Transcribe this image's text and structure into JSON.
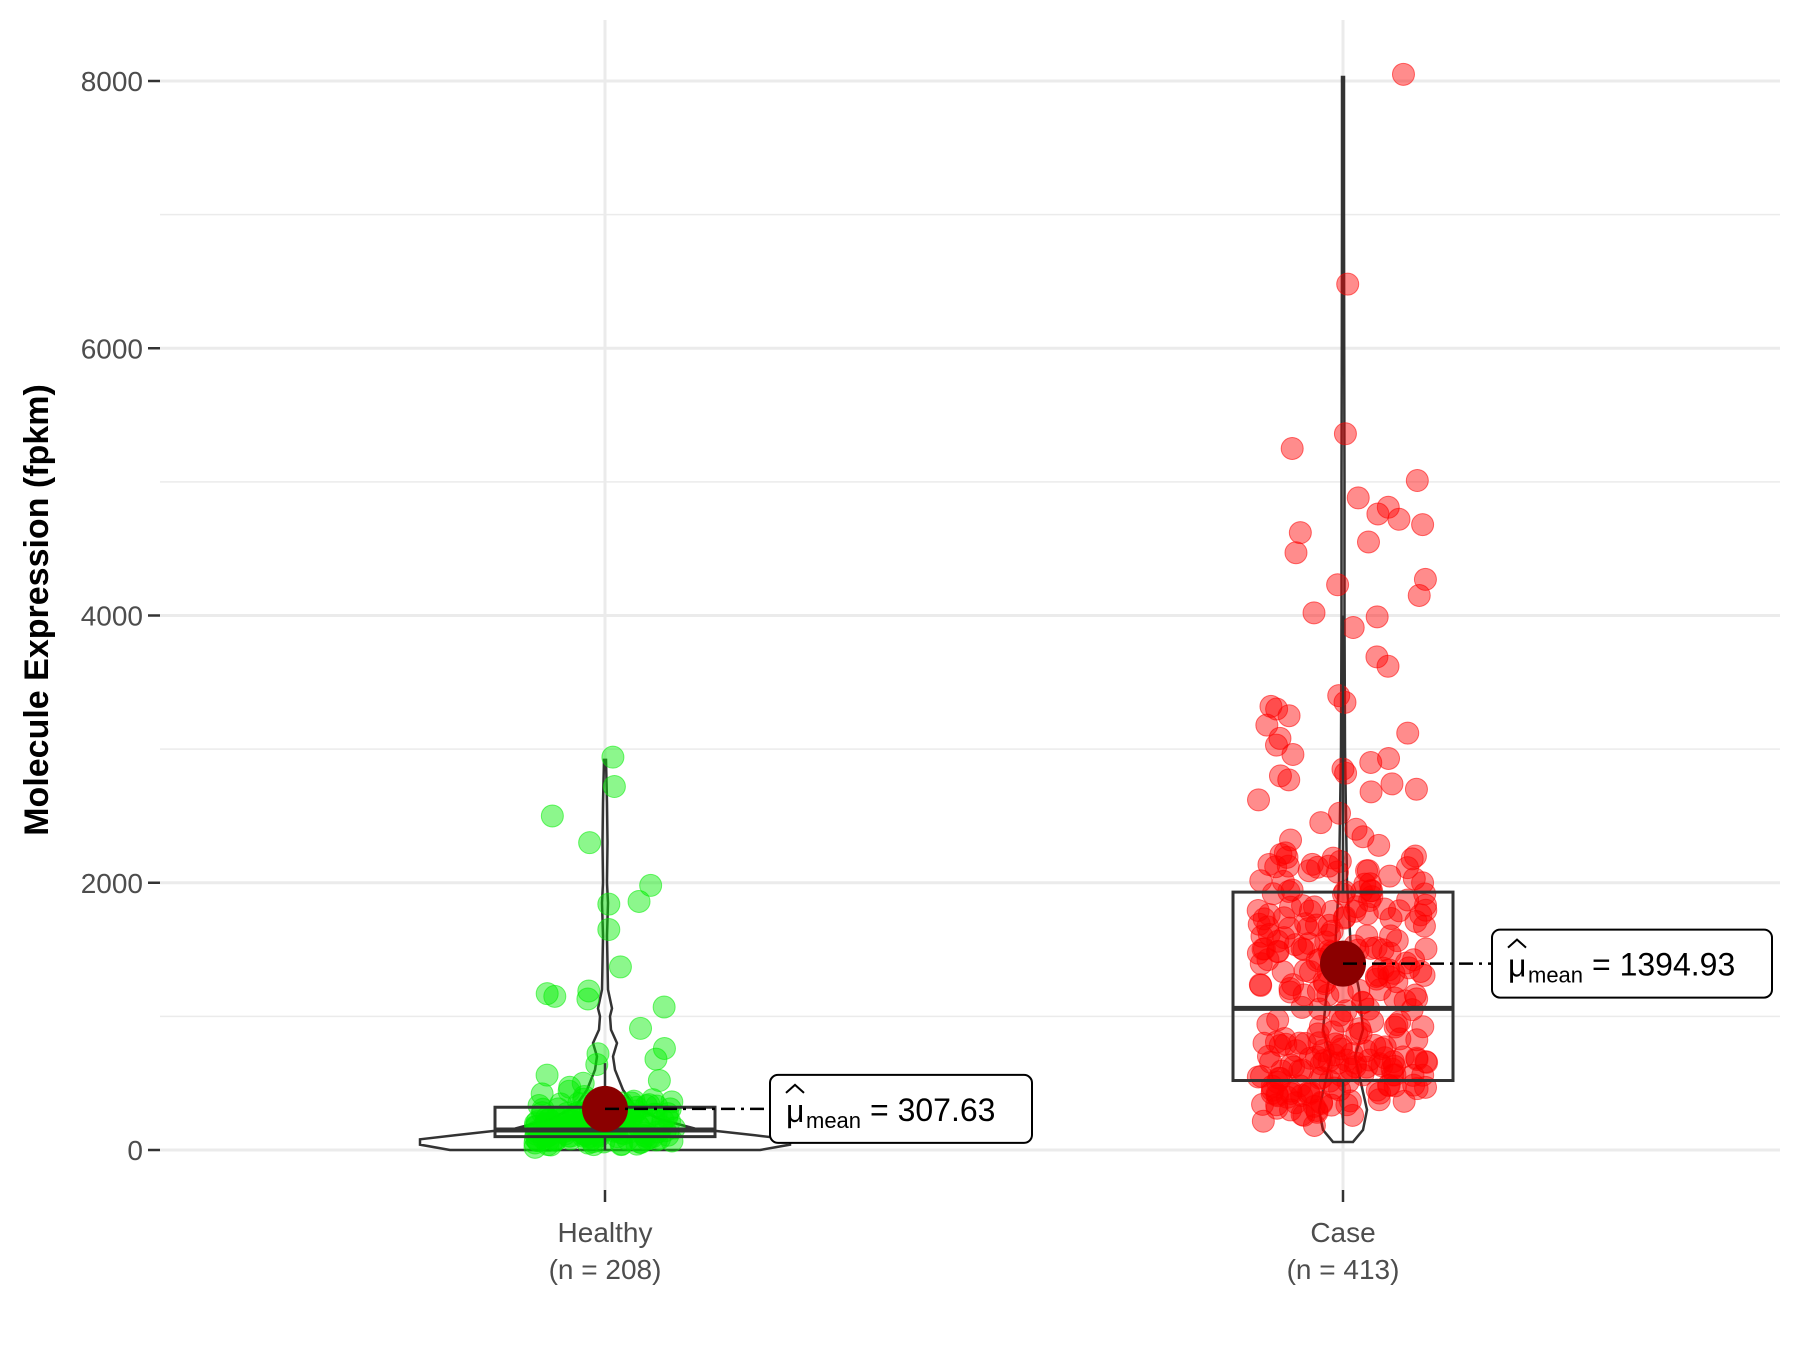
{
  "chart_data": {
    "type": "violin",
    "ylabel": "Molecule Expression (fpkm)",
    "xlabel": "",
    "ylim": [
      -400,
      8450
    ],
    "yticks": [
      0,
      2000,
      4000,
      6000,
      8000
    ],
    "grid": true,
    "groups": [
      {
        "name": "Healthy",
        "n_label": "(n = 208)",
        "color": "#00ee00",
        "mean": 307.63,
        "mean_label": "= 307.63",
        "box": {
          "q1": 100,
          "median": 150,
          "q3": 320,
          "whisker_low": 0,
          "whisker_high": 650
        },
        "violin_max": 2920,
        "outliers": [
          2940,
          2720,
          2500,
          2300,
          1980,
          1860,
          1840,
          1650,
          1370,
          1190,
          1170,
          1150,
          1130,
          1070,
          910,
          760,
          720,
          680,
          640,
          560,
          520,
          500,
          470,
          440,
          420,
          400,
          380,
          360,
          340,
          320,
          300,
          280,
          260,
          240,
          220,
          200,
          180,
          160,
          140,
          120,
          100,
          80,
          60,
          40,
          20
        ]
      },
      {
        "name": "Case",
        "n_label": "(n = 413)",
        "color": "#ff0000",
        "mean": 1394.93,
        "mean_label": "= 1394.93",
        "box": {
          "q1": 520,
          "median": 1060,
          "q3": 1930,
          "whisker_low": 60,
          "whisker_high": 4000
        },
        "violin_max": 8030,
        "outliers": [
          8050,
          6480,
          5360,
          5250,
          5010,
          4880,
          4810,
          4760,
          4720,
          4680,
          4620,
          4550,
          4470,
          4270,
          4230,
          4150,
          4020,
          3990,
          3910,
          3690,
          3620,
          3400,
          3350,
          3320,
          3300,
          3250,
          3180,
          3120,
          3080,
          3030,
          2960,
          2930,
          2900,
          2850,
          2820,
          2800,
          2770,
          2740,
          2700,
          2680,
          2620,
          2520,
          2450,
          2400,
          2320,
          2280,
          2200,
          2160,
          2120,
          2080,
          2050,
          2000
        ]
      }
    ]
  }
}
